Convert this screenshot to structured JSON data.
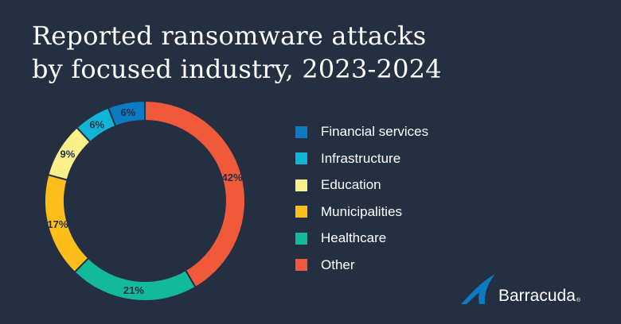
{
  "title": {
    "line1": "Reported ransomware attacks",
    "line2": "by focused industry, 2023-2024"
  },
  "chart_data": {
    "type": "pie",
    "variant": "donut",
    "title": "Reported ransomware attacks by focused industry, 2023-2024",
    "legend_position": "right",
    "slices": [
      {
        "label": "Financial services",
        "value": 6,
        "data_label": "6%",
        "color": "#0b7bc4"
      },
      {
        "label": "Infrastructure",
        "value": 6,
        "data_label": "6%",
        "color": "#10b4d6"
      },
      {
        "label": "Education",
        "value": 9,
        "data_label": "9%",
        "color": "#f9f08a"
      },
      {
        "label": "Municipalities",
        "value": 17,
        "data_label": "17%",
        "color": "#fdbd1a"
      },
      {
        "label": "Healthcare",
        "value": 21,
        "data_label": "21%",
        "color": "#13b99b"
      },
      {
        "label": "Other",
        "value": 42,
        "data_label": "42%",
        "color": "#f05a3a"
      }
    ],
    "order_on_ring": [
      "Other",
      "Healthcare",
      "Municipalities",
      "Education",
      "Infrastructure",
      "Financial services"
    ],
    "data_label_color": "#252f42",
    "separator_color": "#252f42"
  },
  "brand": {
    "name": "Barracuda",
    "registered": "®",
    "icon": "barracuda-fin-icon",
    "icon_color": "#0b7bc4"
  },
  "colors": {
    "background": "#252f42",
    "text": "#ffffff"
  }
}
